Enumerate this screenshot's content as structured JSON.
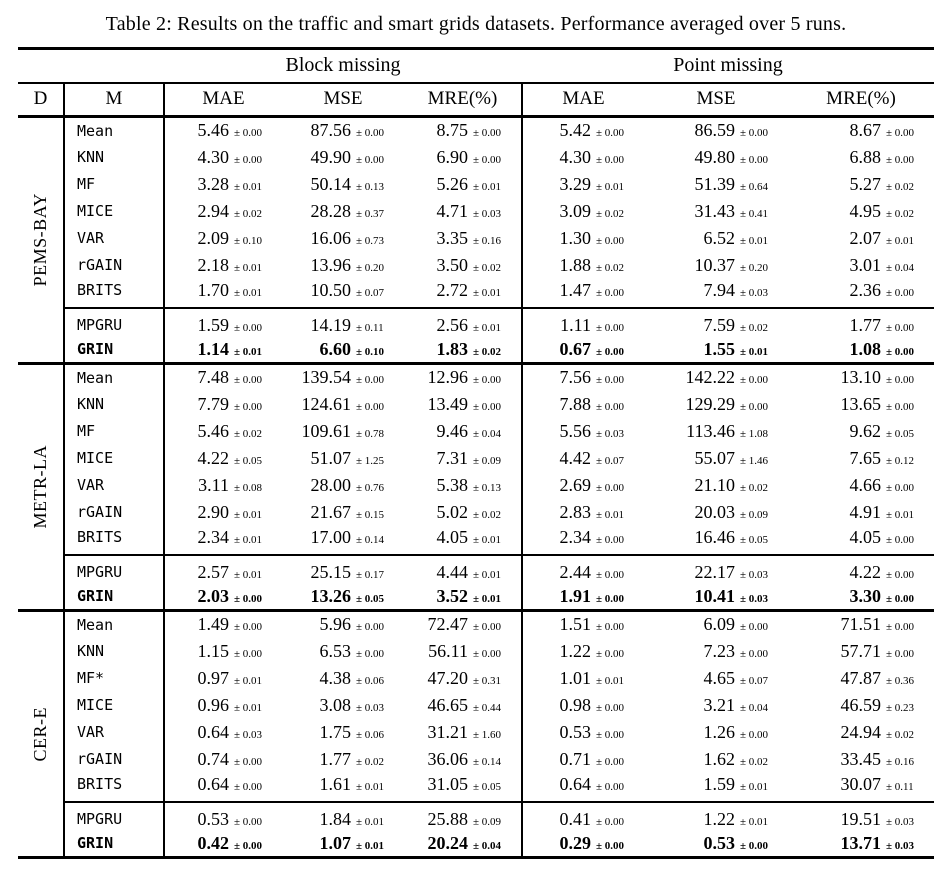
{
  "pm_prefix": "±",
  "caption": "Table 2: Results on the traffic and smart grids datasets. Performance averaged over 5 runs.",
  "header": {
    "d": "D",
    "m": "M",
    "groups": [
      "Block missing",
      "Point missing"
    ],
    "metrics": [
      "MAE",
      "MSE",
      "MRE(%)"
    ]
  },
  "sections": [
    {
      "dataset": "PEMS-BAY",
      "baselines": [
        {
          "method": "Mean",
          "values": [
            [
              "5.46",
              "0.00"
            ],
            [
              "87.56",
              "0.00"
            ],
            [
              "8.75",
              "0.00"
            ],
            [
              "5.42",
              "0.00"
            ],
            [
              "86.59",
              "0.00"
            ],
            [
              "8.67",
              "0.00"
            ]
          ]
        },
        {
          "method": "KNN",
          "values": [
            [
              "4.30",
              "0.00"
            ],
            [
              "49.90",
              "0.00"
            ],
            [
              "6.90",
              "0.00"
            ],
            [
              "4.30",
              "0.00"
            ],
            [
              "49.80",
              "0.00"
            ],
            [
              "6.88",
              "0.00"
            ]
          ]
        },
        {
          "method": "MF",
          "values": [
            [
              "3.28",
              "0.01"
            ],
            [
              "50.14",
              "0.13"
            ],
            [
              "5.26",
              "0.01"
            ],
            [
              "3.29",
              "0.01"
            ],
            [
              "51.39",
              "0.64"
            ],
            [
              "5.27",
              "0.02"
            ]
          ]
        },
        {
          "method": "MICE",
          "values": [
            [
              "2.94",
              "0.02"
            ],
            [
              "28.28",
              "0.37"
            ],
            [
              "4.71",
              "0.03"
            ],
            [
              "3.09",
              "0.02"
            ],
            [
              "31.43",
              "0.41"
            ],
            [
              "4.95",
              "0.02"
            ]
          ]
        },
        {
          "method": "VAR",
          "values": [
            [
              "2.09",
              "0.10"
            ],
            [
              "16.06",
              "0.73"
            ],
            [
              "3.35",
              "0.16"
            ],
            [
              "1.30",
              "0.00"
            ],
            [
              "6.52",
              "0.01"
            ],
            [
              "2.07",
              "0.01"
            ]
          ]
        },
        {
          "method": "rGAIN",
          "values": [
            [
              "2.18",
              "0.01"
            ],
            [
              "13.96",
              "0.20"
            ],
            [
              "3.50",
              "0.02"
            ],
            [
              "1.88",
              "0.02"
            ],
            [
              "10.37",
              "0.20"
            ],
            [
              "3.01",
              "0.04"
            ]
          ]
        },
        {
          "method": "BRITS",
          "values": [
            [
              "1.70",
              "0.01"
            ],
            [
              "10.50",
              "0.07"
            ],
            [
              "2.72",
              "0.01"
            ],
            [
              "1.47",
              "0.00"
            ],
            [
              "7.94",
              "0.03"
            ],
            [
              "2.36",
              "0.00"
            ]
          ]
        }
      ],
      "proposed": [
        {
          "method": "MPGRU",
          "bold": false,
          "values": [
            [
              "1.59",
              "0.00"
            ],
            [
              "14.19",
              "0.11"
            ],
            [
              "2.56",
              "0.01"
            ],
            [
              "1.11",
              "0.00"
            ],
            [
              "7.59",
              "0.02"
            ],
            [
              "1.77",
              "0.00"
            ]
          ]
        },
        {
          "method": "GRIN",
          "bold": true,
          "values": [
            [
              "1.14",
              "0.01"
            ],
            [
              "6.60",
              "0.10"
            ],
            [
              "1.83",
              "0.02"
            ],
            [
              "0.67",
              "0.00"
            ],
            [
              "1.55",
              "0.01"
            ],
            [
              "1.08",
              "0.00"
            ]
          ]
        }
      ]
    },
    {
      "dataset": "METR-LA",
      "baselines": [
        {
          "method": "Mean",
          "values": [
            [
              "7.48",
              "0.00"
            ],
            [
              "139.54",
              "0.00"
            ],
            [
              "12.96",
              "0.00"
            ],
            [
              "7.56",
              "0.00"
            ],
            [
              "142.22",
              "0.00"
            ],
            [
              "13.10",
              "0.00"
            ]
          ]
        },
        {
          "method": "KNN",
          "values": [
            [
              "7.79",
              "0.00"
            ],
            [
              "124.61",
              "0.00"
            ],
            [
              "13.49",
              "0.00"
            ],
            [
              "7.88",
              "0.00"
            ],
            [
              "129.29",
              "0.00"
            ],
            [
              "13.65",
              "0.00"
            ]
          ]
        },
        {
          "method": "MF",
          "values": [
            [
              "5.46",
              "0.02"
            ],
            [
              "109.61",
              "0.78"
            ],
            [
              "9.46",
              "0.04"
            ],
            [
              "5.56",
              "0.03"
            ],
            [
              "113.46",
              "1.08"
            ],
            [
              "9.62",
              "0.05"
            ]
          ]
        },
        {
          "method": "MICE",
          "values": [
            [
              "4.22",
              "0.05"
            ],
            [
              "51.07",
              "1.25"
            ],
            [
              "7.31",
              "0.09"
            ],
            [
              "4.42",
              "0.07"
            ],
            [
              "55.07",
              "1.46"
            ],
            [
              "7.65",
              "0.12"
            ]
          ]
        },
        {
          "method": "VAR",
          "values": [
            [
              "3.11",
              "0.08"
            ],
            [
              "28.00",
              "0.76"
            ],
            [
              "5.38",
              "0.13"
            ],
            [
              "2.69",
              "0.00"
            ],
            [
              "21.10",
              "0.02"
            ],
            [
              "4.66",
              "0.00"
            ]
          ]
        },
        {
          "method": "rGAIN",
          "values": [
            [
              "2.90",
              "0.01"
            ],
            [
              "21.67",
              "0.15"
            ],
            [
              "5.02",
              "0.02"
            ],
            [
              "2.83",
              "0.01"
            ],
            [
              "20.03",
              "0.09"
            ],
            [
              "4.91",
              "0.01"
            ]
          ]
        },
        {
          "method": "BRITS",
          "values": [
            [
              "2.34",
              "0.01"
            ],
            [
              "17.00",
              "0.14"
            ],
            [
              "4.05",
              "0.01"
            ],
            [
              "2.34",
              "0.00"
            ],
            [
              "16.46",
              "0.05"
            ],
            [
              "4.05",
              "0.00"
            ]
          ]
        }
      ],
      "proposed": [
        {
          "method": "MPGRU",
          "bold": false,
          "values": [
            [
              "2.57",
              "0.01"
            ],
            [
              "25.15",
              "0.17"
            ],
            [
              "4.44",
              "0.01"
            ],
            [
              "2.44",
              "0.00"
            ],
            [
              "22.17",
              "0.03"
            ],
            [
              "4.22",
              "0.00"
            ]
          ]
        },
        {
          "method": "GRIN",
          "bold": true,
          "values": [
            [
              "2.03",
              "0.00"
            ],
            [
              "13.26",
              "0.05"
            ],
            [
              "3.52",
              "0.01"
            ],
            [
              "1.91",
              "0.00"
            ],
            [
              "10.41",
              "0.03"
            ],
            [
              "3.30",
              "0.00"
            ]
          ]
        }
      ]
    },
    {
      "dataset": "CER-E",
      "baselines": [
        {
          "method": "Mean",
          "values": [
            [
              "1.49",
              "0.00"
            ],
            [
              "5.96",
              "0.00"
            ],
            [
              "72.47",
              "0.00"
            ],
            [
              "1.51",
              "0.00"
            ],
            [
              "6.09",
              "0.00"
            ],
            [
              "71.51",
              "0.00"
            ]
          ]
        },
        {
          "method": "KNN",
          "values": [
            [
              "1.15",
              "0.00"
            ],
            [
              "6.53",
              "0.00"
            ],
            [
              "56.11",
              "0.00"
            ],
            [
              "1.22",
              "0.00"
            ],
            [
              "7.23",
              "0.00"
            ],
            [
              "57.71",
              "0.00"
            ]
          ]
        },
        {
          "method": "MF*",
          "values": [
            [
              "0.97",
              "0.01"
            ],
            [
              "4.38",
              "0.06"
            ],
            [
              "47.20",
              "0.31"
            ],
            [
              "1.01",
              "0.01"
            ],
            [
              "4.65",
              "0.07"
            ],
            [
              "47.87",
              "0.36"
            ]
          ]
        },
        {
          "method": "MICE",
          "values": [
            [
              "0.96",
              "0.01"
            ],
            [
              "3.08",
              "0.03"
            ],
            [
              "46.65",
              "0.44"
            ],
            [
              "0.98",
              "0.00"
            ],
            [
              "3.21",
              "0.04"
            ],
            [
              "46.59",
              "0.23"
            ]
          ]
        },
        {
          "method": "VAR",
          "values": [
            [
              "0.64",
              "0.03"
            ],
            [
              "1.75",
              "0.06"
            ],
            [
              "31.21",
              "1.60"
            ],
            [
              "0.53",
              "0.00"
            ],
            [
              "1.26",
              "0.00"
            ],
            [
              "24.94",
              "0.02"
            ]
          ]
        },
        {
          "method": "rGAIN",
          "values": [
            [
              "0.74",
              "0.00"
            ],
            [
              "1.77",
              "0.02"
            ],
            [
              "36.06",
              "0.14"
            ],
            [
              "0.71",
              "0.00"
            ],
            [
              "1.62",
              "0.02"
            ],
            [
              "33.45",
              "0.16"
            ]
          ]
        },
        {
          "method": "BRITS",
          "values": [
            [
              "0.64",
              "0.00"
            ],
            [
              "1.61",
              "0.01"
            ],
            [
              "31.05",
              "0.05"
            ],
            [
              "0.64",
              "0.00"
            ],
            [
              "1.59",
              "0.01"
            ],
            [
              "30.07",
              "0.11"
            ]
          ]
        }
      ],
      "proposed": [
        {
          "method": "MPGRU",
          "bold": false,
          "values": [
            [
              "0.53",
              "0.00"
            ],
            [
              "1.84",
              "0.01"
            ],
            [
              "25.88",
              "0.09"
            ],
            [
              "0.41",
              "0.00"
            ],
            [
              "1.22",
              "0.01"
            ],
            [
              "19.51",
              "0.03"
            ]
          ]
        },
        {
          "method": "GRIN",
          "bold": true,
          "values": [
            [
              "0.42",
              "0.00"
            ],
            [
              "1.07",
              "0.01"
            ],
            [
              "20.24",
              "0.04"
            ],
            [
              "0.29",
              "0.00"
            ],
            [
              "0.53",
              "0.00"
            ],
            [
              "13.71",
              "0.03"
            ]
          ]
        }
      ]
    }
  ]
}
